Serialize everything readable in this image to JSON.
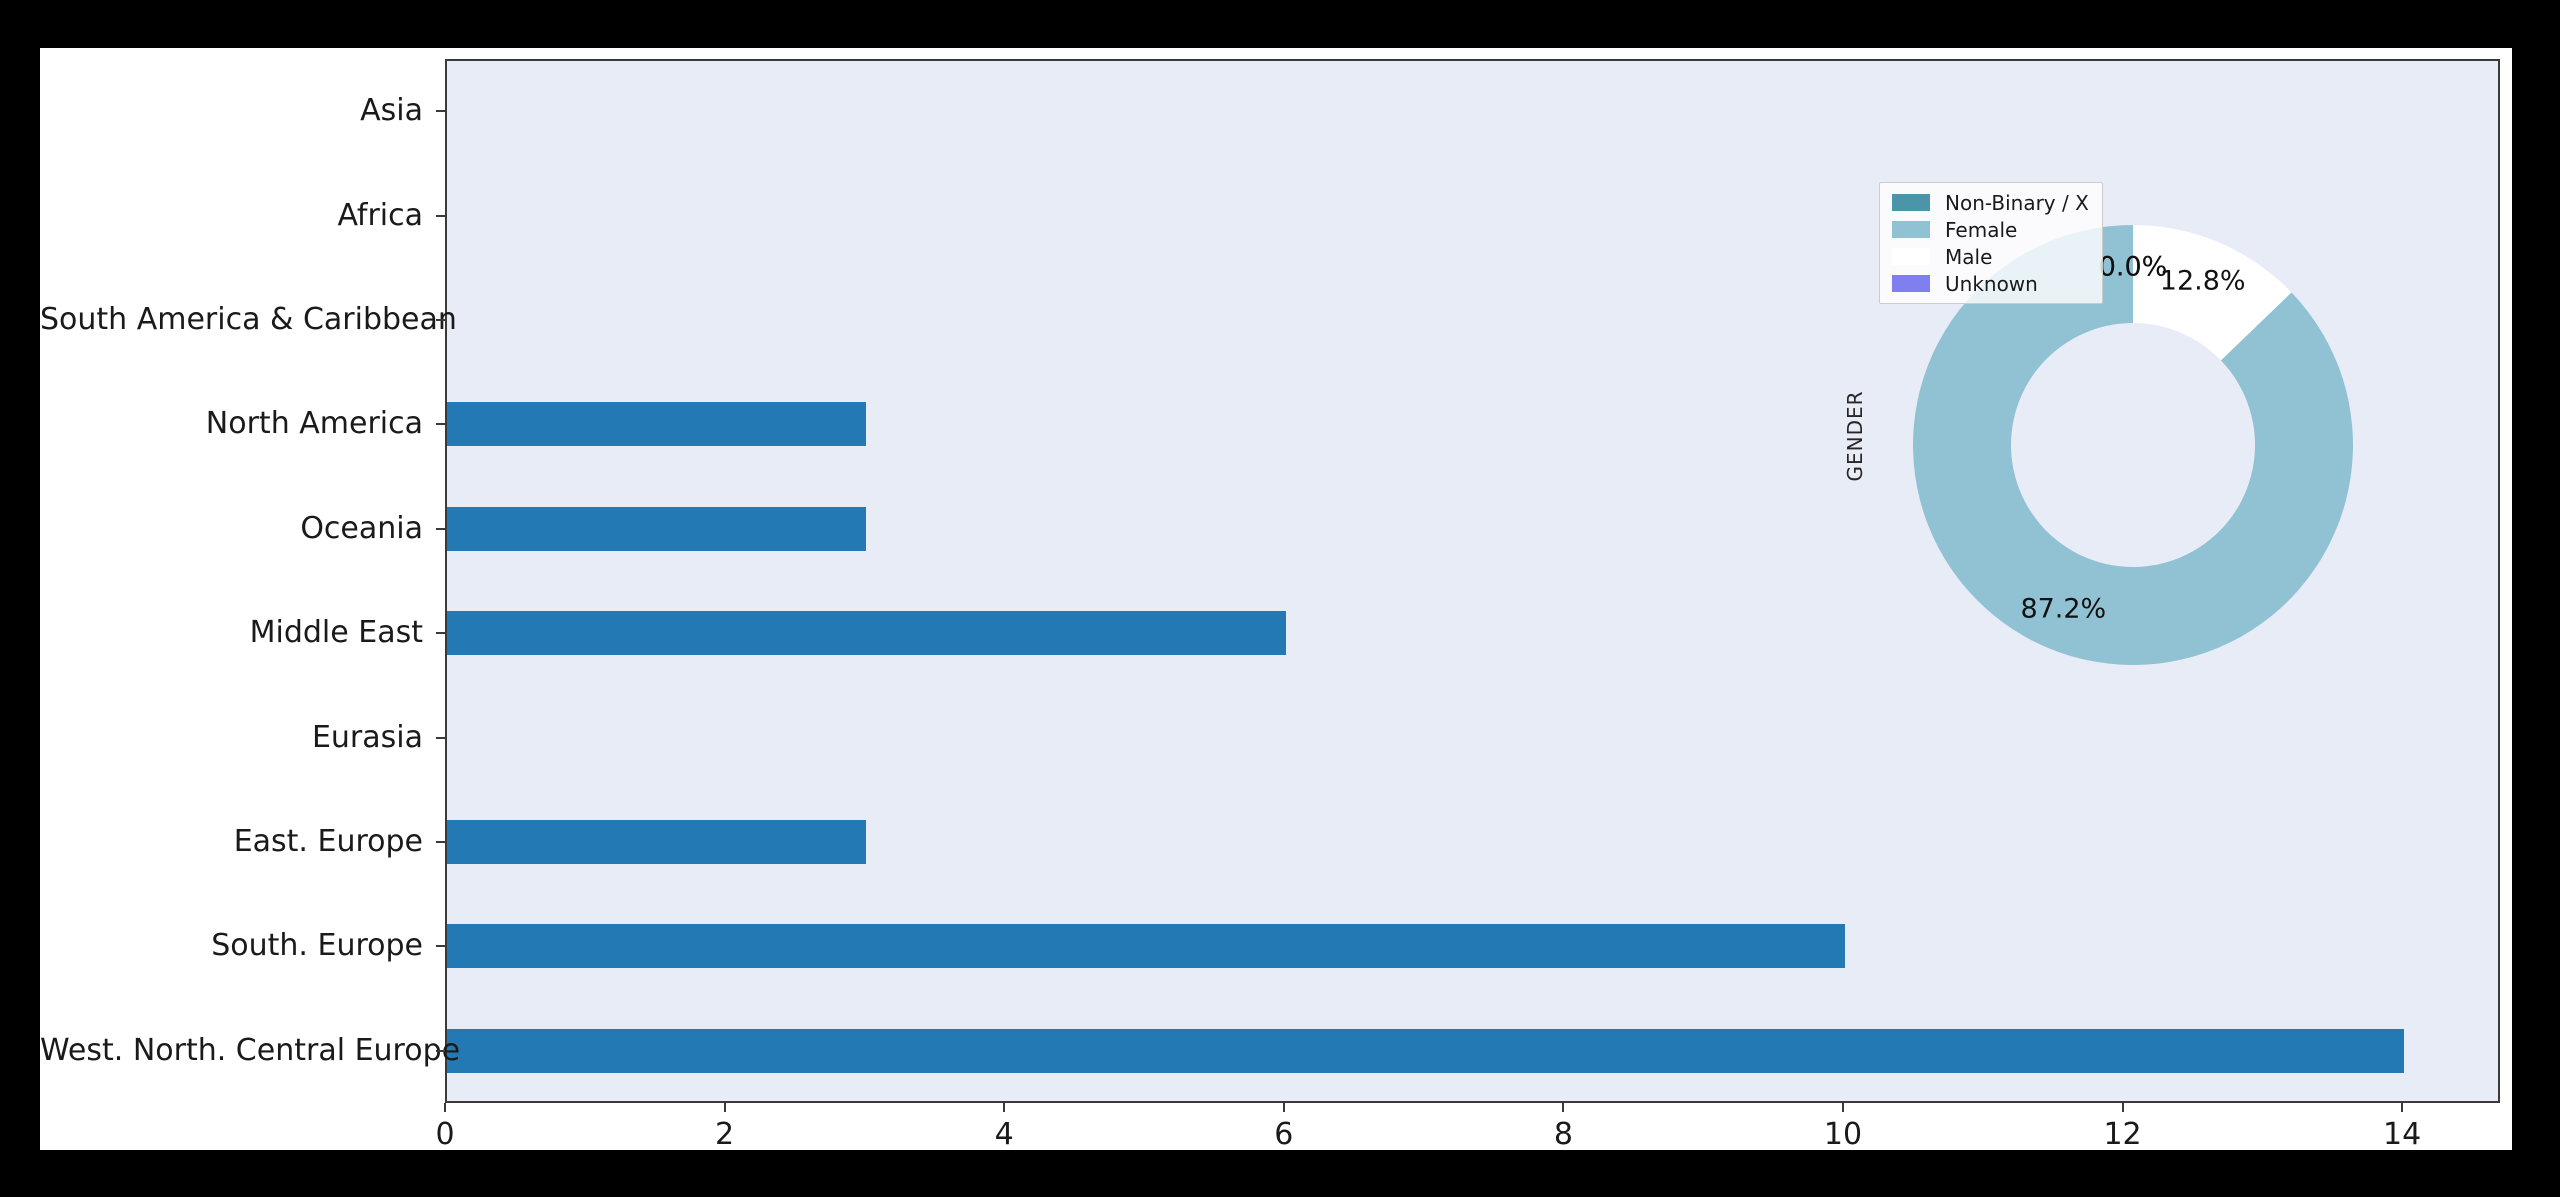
{
  "chart_data": {
    "type": "bar",
    "orientation": "horizontal",
    "title": "",
    "xlabel": "",
    "ylabel": "",
    "categories": [
      "Asia",
      "Africa",
      "South America & Caribbean",
      "North America",
      "Oceania",
      "Middle East",
      "Eurasia",
      "East. Europe",
      "South. Europe",
      "West. North. Central Europe"
    ],
    "values": [
      0,
      0,
      0,
      3,
      3,
      6,
      0,
      3,
      10,
      14
    ],
    "xticks": [
      "0",
      "2",
      "4",
      "6",
      "8",
      "10",
      "12",
      "14"
    ],
    "xlim": [
      0,
      14.7
    ],
    "grid": false,
    "bar_color": "#2379b4",
    "plot_bg": "#e8ecf6",
    "figure_bg": "#ffffff",
    "outer_bg": "#000000",
    "spine_color": "#3a3a3a",
    "text_color": "#1a1a1a",
    "inset": {
      "type": "pie",
      "donut": true,
      "title": "GENDER",
      "start_angle": 90,
      "counterclockwise": true,
      "legend_position": "upper-left",
      "series": [
        {
          "label": "Non-Binary / X",
          "value": 0.0,
          "pct_label": "0.0%",
          "color": "#4a95aa"
        },
        {
          "label": "Female",
          "value": 87.2,
          "pct_label": "87.2%",
          "color": "#90c2d4"
        },
        {
          "label": "Male",
          "value": 12.8,
          "pct_label": "12.8%",
          "color": "#ffffff"
        },
        {
          "label": "Unknown",
          "value": 0.0,
          "pct_label": "0.0%",
          "color": "#7f7ff0"
        }
      ]
    }
  }
}
